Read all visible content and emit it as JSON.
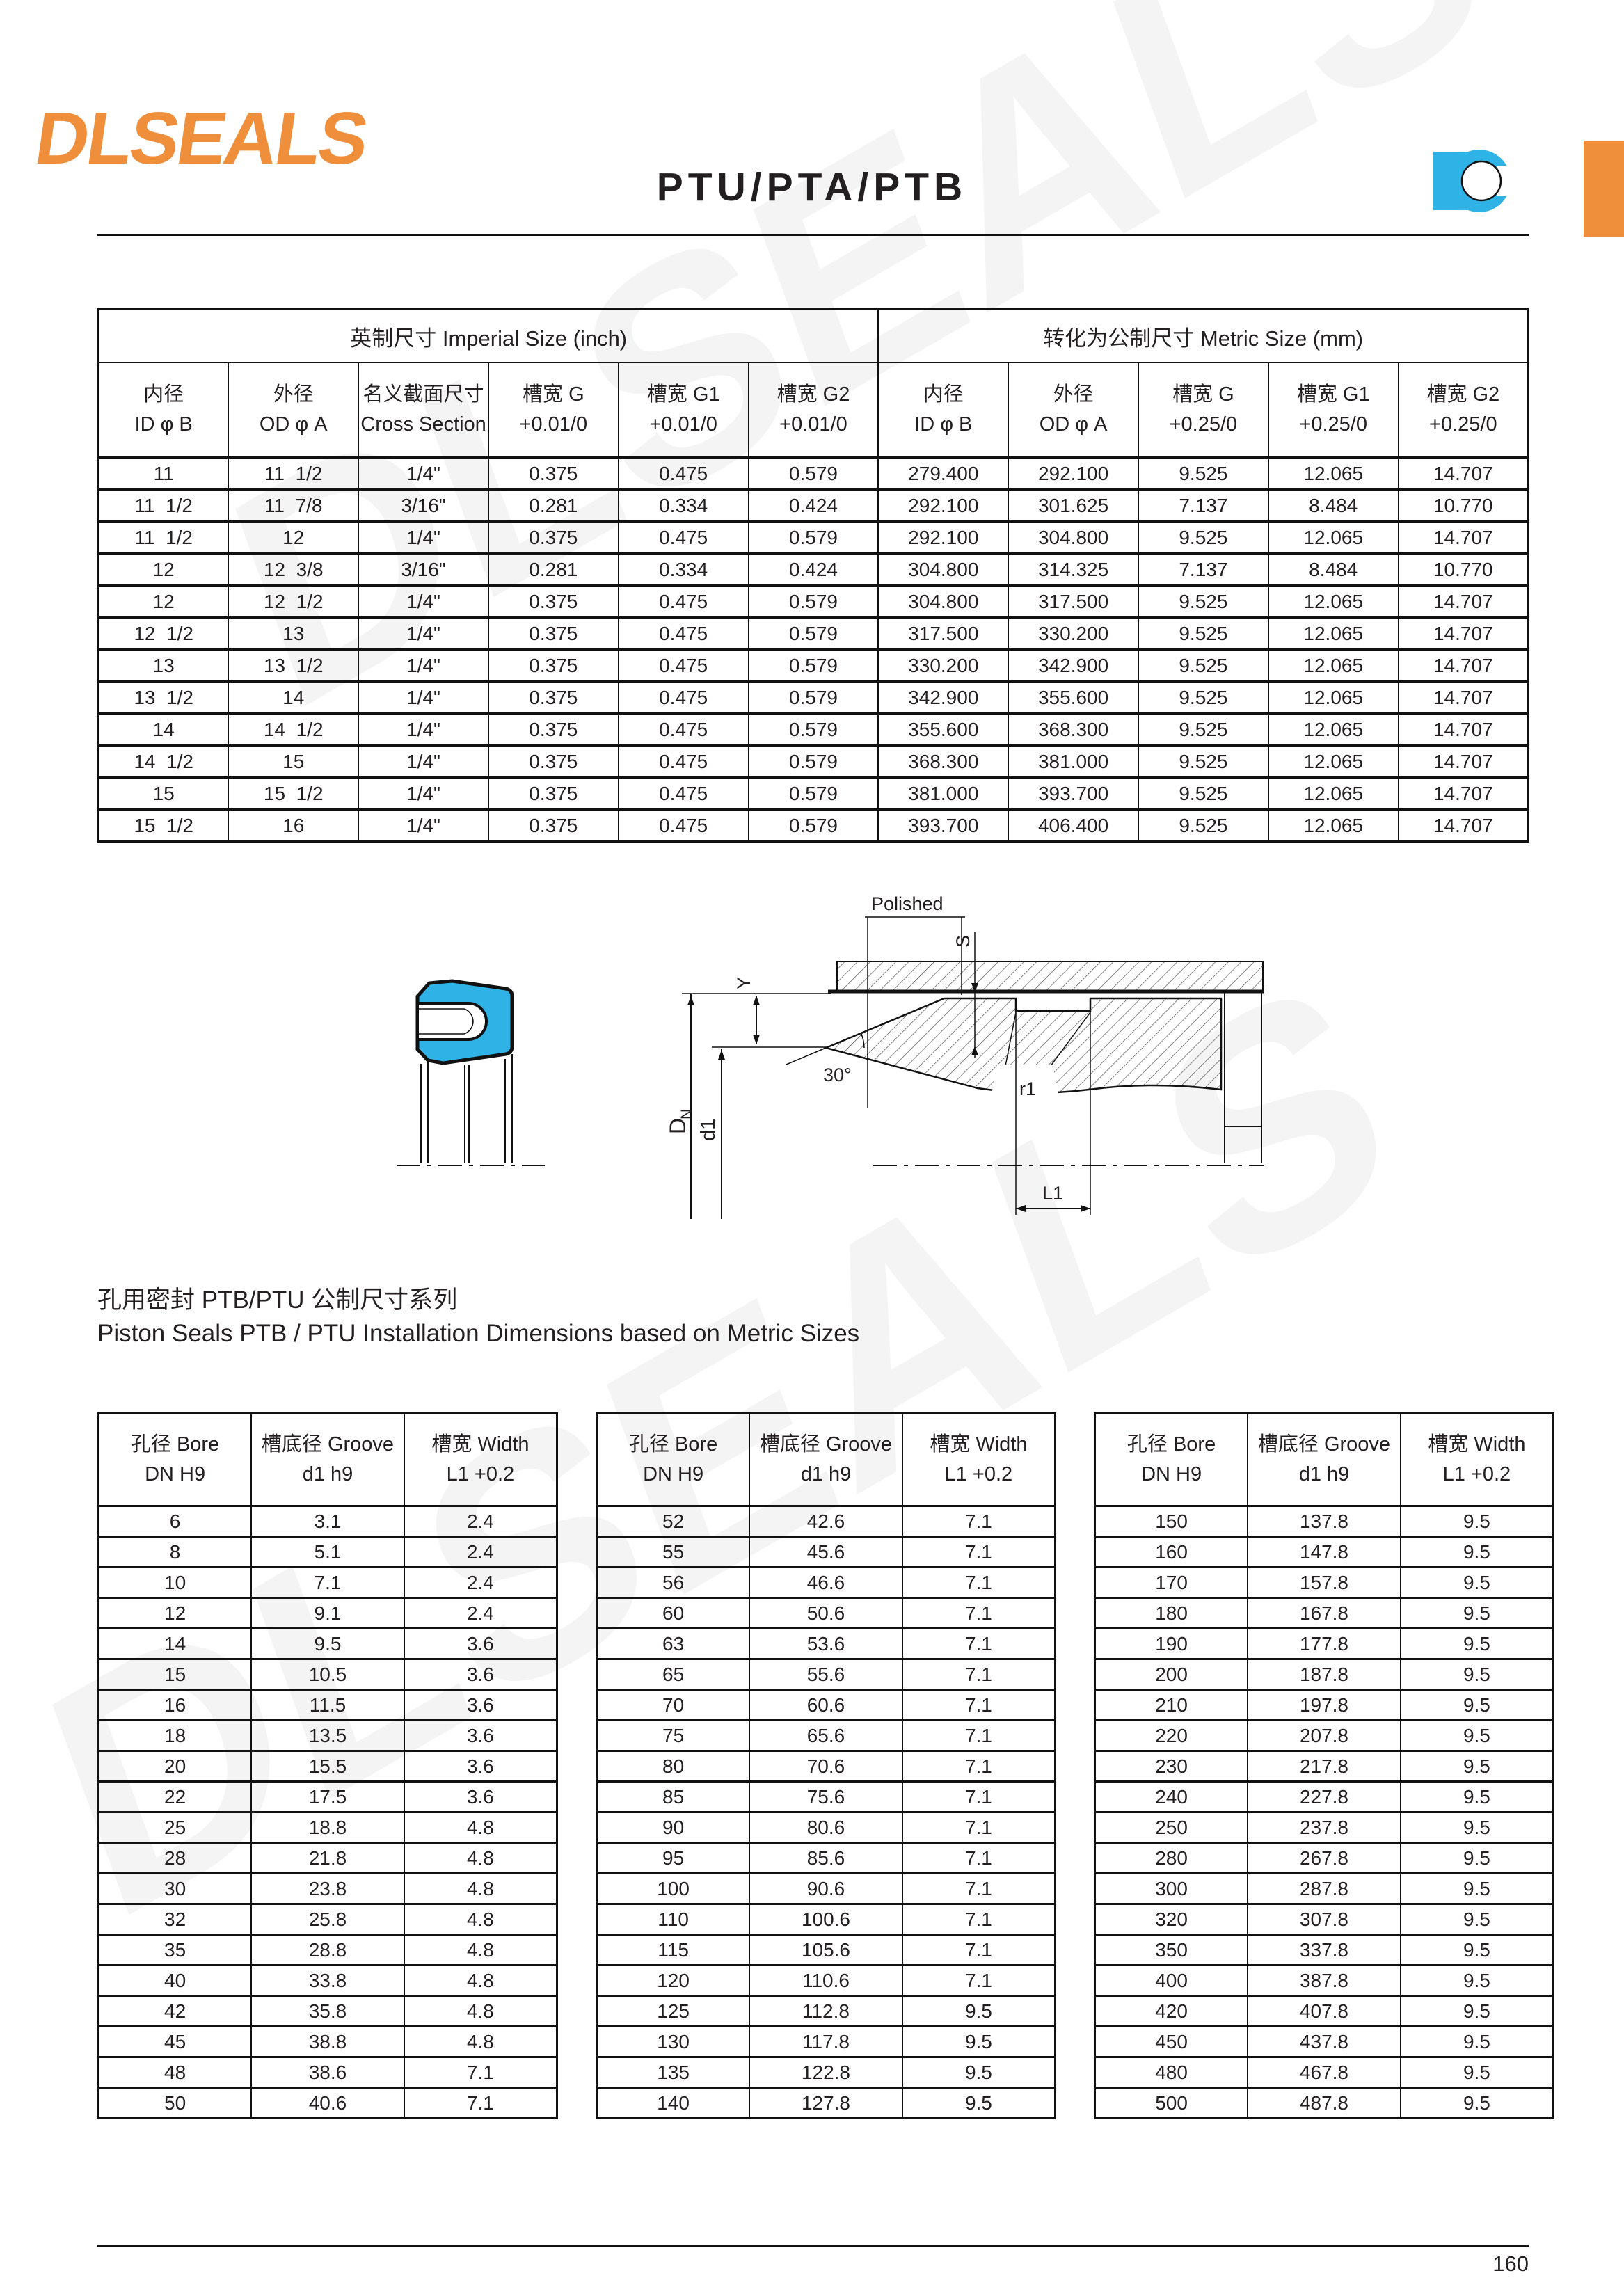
{
  "brand": {
    "logo_text": "DLSEALS",
    "logo_color": "#ef8f3c",
    "accent_blue": "#2fb3e6"
  },
  "page": {
    "title": "PTU/PTA/PTB",
    "page_number": "160",
    "watermark_text": "DLSEALS"
  },
  "size_table": {
    "group_headers": [
      "英制尺寸 Imperial Size (inch)",
      "转化为公制尺寸 Metric Size (mm)"
    ],
    "columns": [
      {
        "line1": "内径",
        "line2": "ID φ B"
      },
      {
        "line1": "外径",
        "line2": "OD φ A"
      },
      {
        "line1": "名义截面尺寸",
        "line2": "Cross Section"
      },
      {
        "line1": "槽宽 G",
        "line2": "+0.01/0"
      },
      {
        "line1": "槽宽 G1",
        "line2": "+0.01/0"
      },
      {
        "line1": "槽宽 G2",
        "line2": "+0.01/0"
      },
      {
        "line1": "内径",
        "line2": "ID φ B"
      },
      {
        "line1": "外径",
        "line2": "OD φ A"
      },
      {
        "line1": "槽宽 G",
        "line2": "+0.25/0"
      },
      {
        "line1": "槽宽 G1",
        "line2": "+0.25/0"
      },
      {
        "line1": "槽宽 G2",
        "line2": "+0.25/0"
      }
    ],
    "rows": [
      [
        "11",
        "11  1/2",
        "1/4\"",
        "0.375",
        "0.475",
        "0.579",
        "279.400",
        "292.100",
        "9.525",
        "12.065",
        "14.707"
      ],
      [
        "11  1/2",
        "11  7/8",
        "3/16\"",
        "0.281",
        "0.334",
        "0.424",
        "292.100",
        "301.625",
        "7.137",
        "8.484",
        "10.770"
      ],
      [
        "11  1/2",
        "12",
        "1/4\"",
        "0.375",
        "0.475",
        "0.579",
        "292.100",
        "304.800",
        "9.525",
        "12.065",
        "14.707"
      ],
      [
        "12",
        "12  3/8",
        "3/16\"",
        "0.281",
        "0.334",
        "0.424",
        "304.800",
        "314.325",
        "7.137",
        "8.484",
        "10.770"
      ],
      [
        "12",
        "12  1/2",
        "1/4\"",
        "0.375",
        "0.475",
        "0.579",
        "304.800",
        "317.500",
        "9.525",
        "12.065",
        "14.707"
      ],
      [
        "12  1/2",
        "13",
        "1/4\"",
        "0.375",
        "0.475",
        "0.579",
        "317.500",
        "330.200",
        "9.525",
        "12.065",
        "14.707"
      ],
      [
        "13",
        "13  1/2",
        "1/4\"",
        "0.375",
        "0.475",
        "0.579",
        "330.200",
        "342.900",
        "9.525",
        "12.065",
        "14.707"
      ],
      [
        "13  1/2",
        "14",
        "1/4\"",
        "0.375",
        "0.475",
        "0.579",
        "342.900",
        "355.600",
        "9.525",
        "12.065",
        "14.707"
      ],
      [
        "14",
        "14  1/2",
        "1/4\"",
        "0.375",
        "0.475",
        "0.579",
        "355.600",
        "368.300",
        "9.525",
        "12.065",
        "14.707"
      ],
      [
        "14  1/2",
        "15",
        "1/4\"",
        "0.375",
        "0.475",
        "0.579",
        "368.300",
        "381.000",
        "9.525",
        "12.065",
        "14.707"
      ],
      [
        "15",
        "15  1/2",
        "1/4\"",
        "0.375",
        "0.475",
        "0.579",
        "381.000",
        "393.700",
        "9.525",
        "12.065",
        "14.707"
      ],
      [
        "15  1/2",
        "16",
        "1/4\"",
        "0.375",
        "0.475",
        "0.579",
        "393.700",
        "406.400",
        "9.525",
        "12.065",
        "14.707"
      ]
    ]
  },
  "install_section": {
    "title_zh": "孔用密封 PTB/PTU 公制尺寸系列",
    "title_en": "Piston Seals PTB / PTU Installation Dimensions based on Metric Sizes"
  },
  "install_tables": {
    "columns": [
      {
        "line1": "孔径 Bore",
        "line2": "DN H9"
      },
      {
        "line1": "槽底径 Groove",
        "line2": "d1 h9"
      },
      {
        "line1": "槽宽 Width",
        "line2": "L1 +0.2"
      }
    ],
    "tables": [
      {
        "rows": [
          [
            "6",
            "3.1",
            "2.4"
          ],
          [
            "8",
            "5.1",
            "2.4"
          ],
          [
            "10",
            "7.1",
            "2.4"
          ],
          [
            "12",
            "9.1",
            "2.4"
          ],
          [
            "14",
            "9.5",
            "3.6"
          ],
          [
            "15",
            "10.5",
            "3.6"
          ],
          [
            "16",
            "11.5",
            "3.6"
          ],
          [
            "18",
            "13.5",
            "3.6"
          ],
          [
            "20",
            "15.5",
            "3.6"
          ],
          [
            "22",
            "17.5",
            "3.6"
          ],
          [
            "25",
            "18.8",
            "4.8"
          ],
          [
            "28",
            "21.8",
            "4.8"
          ],
          [
            "30",
            "23.8",
            "4.8"
          ],
          [
            "32",
            "25.8",
            "4.8"
          ],
          [
            "35",
            "28.8",
            "4.8"
          ],
          [
            "40",
            "33.8",
            "4.8"
          ],
          [
            "42",
            "35.8",
            "4.8"
          ],
          [
            "45",
            "38.8",
            "4.8"
          ],
          [
            "48",
            "38.6",
            "7.1"
          ],
          [
            "50",
            "40.6",
            "7.1"
          ]
        ]
      },
      {
        "rows": [
          [
            "52",
            "42.6",
            "7.1"
          ],
          [
            "55",
            "45.6",
            "7.1"
          ],
          [
            "56",
            "46.6",
            "7.1"
          ],
          [
            "60",
            "50.6",
            "7.1"
          ],
          [
            "63",
            "53.6",
            "7.1"
          ],
          [
            "65",
            "55.6",
            "7.1"
          ],
          [
            "70",
            "60.6",
            "7.1"
          ],
          [
            "75",
            "65.6",
            "7.1"
          ],
          [
            "80",
            "70.6",
            "7.1"
          ],
          [
            "85",
            "75.6",
            "7.1"
          ],
          [
            "90",
            "80.6",
            "7.1"
          ],
          [
            "95",
            "85.6",
            "7.1"
          ],
          [
            "100",
            "90.6",
            "7.1"
          ],
          [
            "110",
            "100.6",
            "7.1"
          ],
          [
            "115",
            "105.6",
            "7.1"
          ],
          [
            "120",
            "110.6",
            "7.1"
          ],
          [
            "125",
            "112.8",
            "9.5"
          ],
          [
            "130",
            "117.8",
            "9.5"
          ],
          [
            "135",
            "122.8",
            "9.5"
          ],
          [
            "140",
            "127.8",
            "9.5"
          ]
        ]
      },
      {
        "rows": [
          [
            "150",
            "137.8",
            "9.5"
          ],
          [
            "160",
            "147.8",
            "9.5"
          ],
          [
            "170",
            "157.8",
            "9.5"
          ],
          [
            "180",
            "167.8",
            "9.5"
          ],
          [
            "190",
            "177.8",
            "9.5"
          ],
          [
            "200",
            "187.8",
            "9.5"
          ],
          [
            "210",
            "197.8",
            "9.5"
          ],
          [
            "220",
            "207.8",
            "9.5"
          ],
          [
            "230",
            "217.8",
            "9.5"
          ],
          [
            "240",
            "227.8",
            "9.5"
          ],
          [
            "250",
            "237.8",
            "9.5"
          ],
          [
            "280",
            "267.8",
            "9.5"
          ],
          [
            "300",
            "287.8",
            "9.5"
          ],
          [
            "320",
            "307.8",
            "9.5"
          ],
          [
            "350",
            "337.8",
            "9.5"
          ],
          [
            "400",
            "387.8",
            "9.5"
          ],
          [
            "420",
            "407.8",
            "9.5"
          ],
          [
            "450",
            "437.8",
            "9.5"
          ],
          [
            "480",
            "467.8",
            "9.5"
          ],
          [
            "500",
            "487.8",
            "9.5"
          ]
        ]
      }
    ]
  },
  "drawing": {
    "labels": {
      "polished": "Polished",
      "s": "S",
      "y": "Y",
      "angle": "30°",
      "r1": "r1",
      "dn_main": "D",
      "dn_sub": "N",
      "d1": "d1",
      "l1": "L1"
    }
  }
}
